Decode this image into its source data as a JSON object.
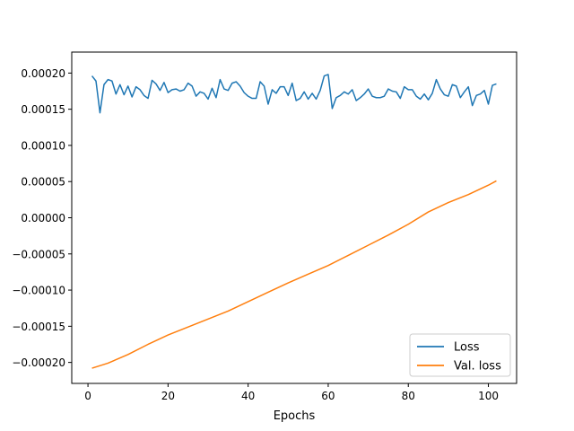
{
  "chart_data": {
    "type": "line",
    "title": "",
    "xlabel": "Epochs",
    "ylabel": "",
    "xlim": [
      -4.05,
      107.05
    ],
    "ylim": [
      -0.000229,
      0.000229
    ],
    "xticks": [
      0,
      20,
      40,
      60,
      80,
      100
    ],
    "yticks": [
      -0.0002,
      -0.00015,
      -0.0001,
      -5e-05,
      0,
      5e-05,
      0.0001,
      0.00015,
      0.0002
    ],
    "ytick_labels": [
      "−0.00020",
      "−0.00015",
      "−0.00010",
      "−0.00005",
      "0.00000",
      "0.00005",
      "0.00010",
      "0.00015",
      "0.00020"
    ],
    "xtick_labels": [
      "0",
      "20",
      "40",
      "60",
      "80",
      "100"
    ],
    "grid": false,
    "legend_position": "lower-right",
    "series": [
      {
        "name": "Loss",
        "color": "#1f77b4",
        "x": [
          1,
          2,
          3,
          4,
          5,
          6,
          7,
          8,
          9,
          10,
          11,
          12,
          13,
          14,
          15,
          16,
          17,
          18,
          19,
          20,
          21,
          22,
          23,
          24,
          25,
          26,
          27,
          28,
          29,
          30,
          31,
          32,
          33,
          34,
          35,
          36,
          37,
          38,
          39,
          40,
          41,
          42,
          43,
          44,
          45,
          46,
          47,
          48,
          49,
          50,
          51,
          52,
          53,
          54,
          55,
          56,
          57,
          58,
          59,
          60,
          61,
          62,
          63,
          64,
          65,
          66,
          67,
          68,
          69,
          70,
          71,
          72,
          73,
          74,
          75,
          76,
          77,
          78,
          79,
          80,
          81,
          82,
          83,
          84,
          85,
          86,
          87,
          88,
          89,
          90,
          91,
          92,
          93,
          94,
          95,
          96,
          97,
          98,
          99,
          100,
          101,
          102
        ],
        "y": [
          0.000196,
          0.000189,
          0.000145,
          0.000184,
          0.000191,
          0.000189,
          0.000171,
          0.000184,
          0.00017,
          0.000182,
          0.000167,
          0.000181,
          0.000177,
          0.000169,
          0.000165,
          0.00019,
          0.000185,
          0.000176,
          0.000187,
          0.000173,
          0.000177,
          0.000178,
          0.000175,
          0.000177,
          0.000186,
          0.000182,
          0.000168,
          0.000174,
          0.000172,
          0.000164,
          0.000179,
          0.000166,
          0.000191,
          0.000178,
          0.000176,
          0.000186,
          0.000188,
          0.000182,
          0.000173,
          0.000168,
          0.000165,
          0.000165,
          0.000188,
          0.000182,
          0.000157,
          0.000177,
          0.000172,
          0.000181,
          0.000181,
          0.000169,
          0.000186,
          0.000162,
          0.000165,
          0.000174,
          0.000164,
          0.000172,
          0.000164,
          0.000176,
          0.000196,
          0.000198,
          0.000151,
          0.000166,
          0.000169,
          0.000174,
          0.000171,
          0.000177,
          0.000162,
          0.000166,
          0.000171,
          0.000178,
          0.000168,
          0.000166,
          0.000166,
          0.000168,
          0.000178,
          0.000175,
          0.000174,
          0.000165,
          0.000181,
          0.000177,
          0.000177,
          0.000168,
          0.000164,
          0.000171,
          0.000163,
          0.000172,
          0.000191,
          0.000178,
          0.00017,
          0.000168,
          0.000184,
          0.000182,
          0.000166,
          0.000174,
          0.000181,
          0.000155,
          0.000169,
          0.000171,
          0.000176,
          0.000157,
          0.000183,
          0.000185
        ]
      },
      {
        "name": "Val. loss",
        "color": "#ff7f0e",
        "x": [
          1,
          5,
          10,
          15,
          20,
          25,
          30,
          35,
          40,
          45,
          50,
          55,
          60,
          65,
          70,
          75,
          80,
          85,
          90,
          95,
          100,
          102
        ],
        "y": [
          -0.000208,
          -0.000201,
          -0.000189,
          -0.000175,
          -0.000162,
          -0.000151,
          -0.00014,
          -0.000129,
          -0.000116,
          -0.000103,
          -9e-05,
          -7.8e-05,
          -6.6e-05,
          -5.2e-05,
          -3.8e-05,
          -2.4e-05,
          -9e-06,
          8e-06,
          2.1e-05,
          3.2e-05,
          4.5e-05,
          5.1e-05
        ]
      }
    ]
  }
}
